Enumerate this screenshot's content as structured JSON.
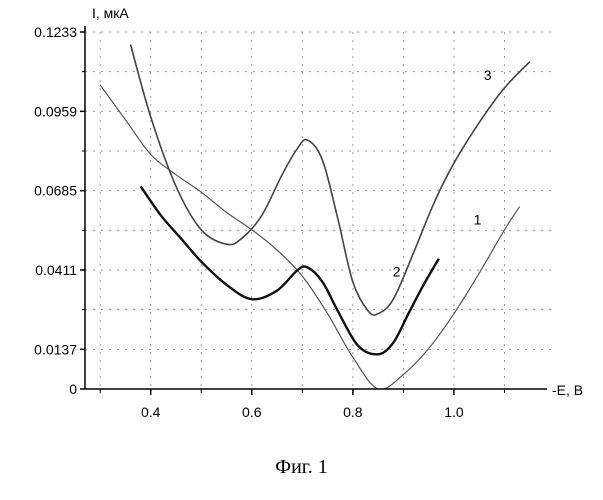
{
  "chart_data": {
    "type": "line",
    "title": "",
    "xlabel": "-E, В",
    "ylabel": "I, мкА",
    "xlim": [
      0.27,
      1.2
    ],
    "ylim": [
      0,
      0.1233
    ],
    "xticks": [
      {
        "value": 0.4,
        "label": "0.4"
      },
      {
        "value": 0.6,
        "label": "0.6"
      },
      {
        "value": 0.8,
        "label": "0.8"
      },
      {
        "value": 1.0,
        "label": "1.0"
      }
    ],
    "yticks": [
      {
        "value": 0,
        "label": "0"
      },
      {
        "value": 0.0137,
        "label": "0.0137"
      },
      {
        "value": 0.0411,
        "label": "0.0411"
      },
      {
        "value": 0.0685,
        "label": "0.0685"
      },
      {
        "value": 0.0959,
        "label": "0.0959"
      },
      {
        "value": 0.1233,
        "label": "0.1233"
      }
    ],
    "grid": true,
    "series": [
      {
        "name": "1",
        "color": "#555555",
        "x": [
          0.3,
          0.35,
          0.4,
          0.45,
          0.5,
          0.55,
          0.6,
          0.65,
          0.7,
          0.75,
          0.8,
          0.85,
          0.9,
          0.95,
          1.0,
          1.05,
          1.1,
          1.13
        ],
        "y": [
          0.105,
          0.093,
          0.081,
          0.074,
          0.068,
          0.061,
          0.055,
          0.048,
          0.039,
          0.026,
          0.011,
          0.0,
          0.005,
          0.014,
          0.026,
          0.04,
          0.055,
          0.063
        ]
      },
      {
        "name": "2",
        "color": "#111111",
        "x": [
          0.38,
          0.42,
          0.46,
          0.5,
          0.55,
          0.6,
          0.65,
          0.69,
          0.71,
          0.74,
          0.77,
          0.81,
          0.85,
          0.88,
          0.91,
          0.94,
          0.97
        ],
        "y": [
          0.07,
          0.06,
          0.052,
          0.044,
          0.036,
          0.031,
          0.034,
          0.041,
          0.042,
          0.037,
          0.027,
          0.015,
          0.012,
          0.016,
          0.026,
          0.036,
          0.045
        ]
      },
      {
        "name": "3",
        "color": "#444444",
        "x": [
          0.36,
          0.4,
          0.45,
          0.5,
          0.55,
          0.58,
          0.62,
          0.66,
          0.69,
          0.71,
          0.74,
          0.77,
          0.8,
          0.83,
          0.85,
          0.88,
          0.92,
          0.96,
          1.0,
          1.05,
          1.1,
          1.15
        ],
        "y": [
          0.119,
          0.094,
          0.07,
          0.055,
          0.05,
          0.052,
          0.06,
          0.074,
          0.083,
          0.086,
          0.079,
          0.059,
          0.037,
          0.027,
          0.026,
          0.031,
          0.047,
          0.064,
          0.078,
          0.092,
          0.104,
          0.113
        ]
      }
    ]
  },
  "caption": "Фиг. 1"
}
